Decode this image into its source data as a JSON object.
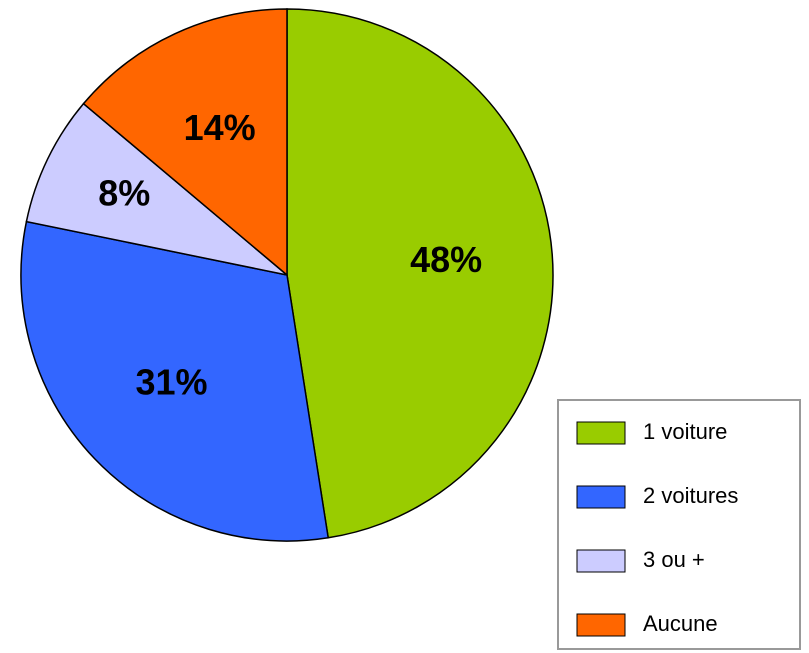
{
  "chart_data": {
    "type": "pie",
    "categories": [
      "1 voiture",
      "2 voitures",
      "3 ou +",
      "Aucune"
    ],
    "values": [
      48,
      31,
      8,
      14
    ],
    "value_labels": [
      "48%",
      "31%",
      "8%",
      "14%"
    ],
    "colors": [
      "#99cc00",
      "#3366ff",
      "#ccccff",
      "#ff6600"
    ],
    "legend": "lower right"
  }
}
